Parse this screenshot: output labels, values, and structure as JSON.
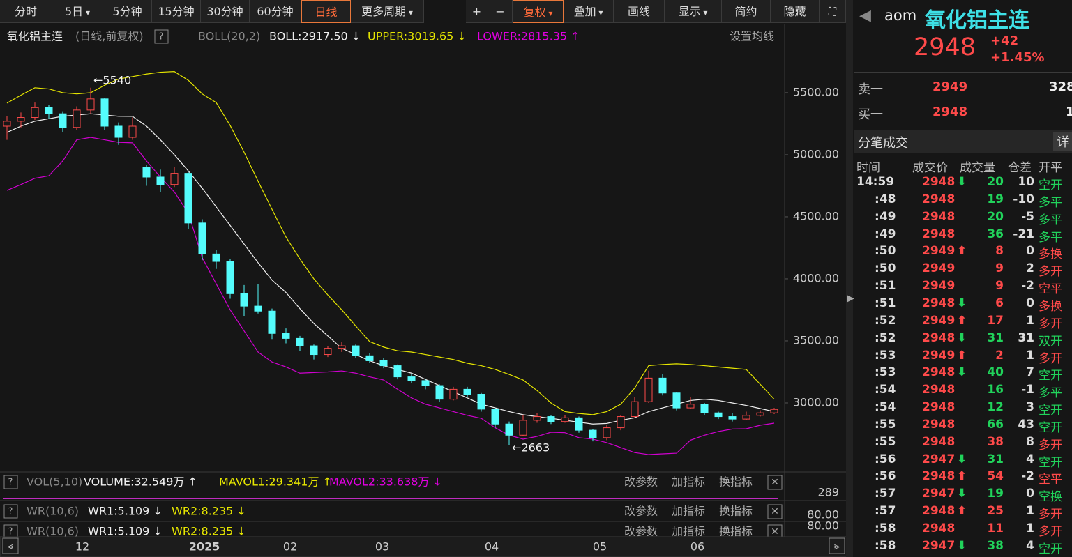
{
  "toolbar": [
    "分时",
    "5日",
    "5分钟",
    "15分钟",
    "30分钟",
    "60分钟",
    "日线",
    "更多周期",
    "+",
    "−",
    "复权",
    "叠加",
    "画线",
    "显示",
    "简约",
    "隐藏"
  ],
  "chart": {
    "title": "氧化铝主连",
    "subtitle": "(日线,前复权)",
    "indicator": "BOLL(20,2)",
    "boll": "BOLL:2917.50 ↓",
    "upper": "UPPER:3019.65 ↓",
    "lower": "LOWER:2815.35 ↑",
    "settings": "设置均线",
    "ylim": [
      2455,
      6022
    ],
    "yticks": [
      {
        "value": 5500,
        "label": "5500.00"
      },
      {
        "value": 5000,
        "label": "5000.00"
      },
      {
        "value": 4500,
        "label": "4500.00"
      },
      {
        "value": 4000,
        "label": "4000.00"
      },
      {
        "value": 3500,
        "label": "3500.00"
      },
      {
        "value": 3000,
        "label": "3000.00"
      }
    ],
    "annotations": [
      "←5540",
      "←2663"
    ],
    "x_labels": [
      "12",
      "2025",
      "02",
      "03",
      "04",
      "05",
      "06"
    ],
    "candles": [
      [
        5230,
        5310,
        5120,
        5270
      ],
      [
        5270,
        5340,
        5220,
        5300
      ],
      [
        5300,
        5420,
        5280,
        5380
      ],
      [
        5380,
        5400,
        5290,
        5330
      ],
      [
        5330,
        5350,
        5180,
        5220
      ],
      [
        5220,
        5390,
        5200,
        5360
      ],
      [
        5360,
        5540,
        5330,
        5450
      ],
      [
        5450,
        5460,
        5200,
        5230
      ],
      [
        5230,
        5260,
        5080,
        5140
      ],
      [
        5140,
        5300,
        5120,
        5230
      ],
      [
        4900,
        4920,
        4750,
        4820
      ],
      [
        4820,
        4880,
        4700,
        4760
      ],
      [
        4760,
        4900,
        4740,
        4850
      ],
      [
        4850,
        4860,
        4400,
        4450
      ],
      [
        4450,
        4480,
        4150,
        4200
      ],
      [
        4200,
        4230,
        4080,
        4140
      ],
      [
        4140,
        4160,
        3840,
        3880
      ],
      [
        3880,
        3950,
        3700,
        3780
      ],
      [
        3780,
        3960,
        3720,
        3740
      ],
      [
        3740,
        3760,
        3510,
        3560
      ],
      [
        3560,
        3600,
        3480,
        3520
      ],
      [
        3520,
        3540,
        3420,
        3460
      ],
      [
        3460,
        3470,
        3350,
        3390
      ],
      [
        3390,
        3460,
        3370,
        3440
      ],
      [
        3440,
        3490,
        3410,
        3460
      ],
      [
        3460,
        3470,
        3360,
        3380
      ],
      [
        3380,
        3400,
        3320,
        3340
      ],
      [
        3340,
        3360,
        3280,
        3300
      ],
      [
        3300,
        3310,
        3190,
        3210
      ],
      [
        3210,
        3230,
        3160,
        3180
      ],
      [
        3180,
        3190,
        3110,
        3140
      ],
      [
        3140,
        3150,
        3010,
        3030
      ],
      [
        3030,
        3130,
        3020,
        3110
      ],
      [
        3110,
        3130,
        3050,
        3070
      ],
      [
        3070,
        3080,
        2930,
        2950
      ],
      [
        2950,
        2960,
        2800,
        2830
      ],
      [
        2830,
        2850,
        2663,
        2740
      ],
      [
        2740,
        2900,
        2730,
        2860
      ],
      [
        2860,
        2920,
        2840,
        2890
      ],
      [
        2890,
        2900,
        2830,
        2850
      ],
      [
        2850,
        2900,
        2840,
        2880
      ],
      [
        2880,
        2890,
        2760,
        2780
      ],
      [
        2780,
        2790,
        2690,
        2720
      ],
      [
        2720,
        2820,
        2700,
        2800
      ],
      [
        2800,
        2900,
        2780,
        2890
      ],
      [
        2890,
        3050,
        2880,
        3010
      ],
      [
        3010,
        3260,
        3000,
        3200
      ],
      [
        3200,
        3230,
        3060,
        3080
      ],
      [
        3080,
        3090,
        2940,
        2960
      ],
      [
        2960,
        3050,
        2950,
        2990
      ],
      [
        2990,
        3000,
        2900,
        2920
      ],
      [
        2920,
        2930,
        2870,
        2890
      ],
      [
        2890,
        2920,
        2850,
        2870
      ],
      [
        2870,
        2930,
        2860,
        2900
      ],
      [
        2900,
        2940,
        2890,
        2920
      ],
      [
        2920,
        2960,
        2910,
        2948
      ]
    ],
    "upper_band": [
      5416,
      5480,
      5540,
      5530,
      5500,
      5490,
      5500,
      5560,
      5610,
      5630,
      5650,
      5665,
      5670,
      5600,
      5490,
      5420,
      5236,
      5020,
      4787,
      4560,
      4337,
      4160,
      4000,
      3870,
      3750,
      3620,
      3494,
      3450,
      3420,
      3410,
      3390,
      3370,
      3350,
      3320,
      3300,
      3270,
      3230,
      3185,
      3100,
      3000,
      2930,
      2915,
      2905,
      2930,
      2990,
      3120,
      3300,
      3310,
      3315,
      3310,
      3300,
      3290,
      3280,
      3270,
      3150,
      3030
    ],
    "mid_band": [
      5180,
      5230,
      5270,
      5290,
      5310,
      5320,
      5330,
      5320,
      5310,
      5309,
      5230,
      5120,
      5000,
      4870,
      4730,
      4580,
      4430,
      4280,
      4130,
      3990,
      3890,
      3760,
      3640,
      3540,
      3440,
      3390,
      3340,
      3300,
      3270,
      3240,
      3190,
      3140,
      3090,
      3040,
      2990,
      2960,
      2930,
      2905,
      2890,
      2876,
      2860,
      2845,
      2830,
      2835,
      2860,
      2880,
      2930,
      2960,
      2990,
      3020,
      3030,
      3020,
      3000,
      2980,
      2955,
      2930
    ],
    "lower_band": [
      4713,
      4760,
      4810,
      4830,
      4950,
      5120,
      5140,
      5120,
      5100,
      5096,
      4950,
      4820,
      4700,
      4530,
      4170,
      3960,
      3750,
      3580,
      3410,
      3330,
      3290,
      3240,
      3245,
      3250,
      3258,
      3240,
      3210,
      3185,
      3110,
      3040,
      2990,
      2960,
      2930,
      2900,
      2876,
      2800,
      2740,
      2708,
      2730,
      2764,
      2760,
      2720,
      2708,
      2680,
      2640,
      2600,
      2584,
      2590,
      2595,
      2700,
      2740,
      2770,
      2790,
      2792,
      2820,
      2837
    ]
  },
  "vol_panel": {
    "name": "VOL(5,10)",
    "volume": "VOLUME:32.549万 ↑",
    "mavol1": "MAVOL1:29.341万 ↑",
    "mavol2": "MAVOL2:33.638万 ↓",
    "axis": "289"
  },
  "wr_panel": {
    "name": "WR(10,6)",
    "wr1": "WR1:5.109 ↓",
    "wr2": "WR2:8.235 ↓",
    "axis": "80.00"
  },
  "panel_buttons": [
    "改参数",
    "加指标",
    "换指标"
  ],
  "quote": {
    "code": "aom",
    "name": "氧化铝主连",
    "price": 2948,
    "change": "+42",
    "change_pct": "+1.45%",
    "ask_label": "卖一",
    "ask": 2949,
    "ask_vol": 328,
    "bid_label": "买一",
    "bid": 2948,
    "bid_vol": 1
  },
  "ticks_panel": {
    "title": "分笔成交",
    "detail": "详",
    "headers": [
      "时间",
      "成交价",
      "成交量",
      "仓差",
      "开平"
    ],
    "rows": [
      [
        "14:59",
        2948,
        "down",
        20,
        10,
        "空开",
        "#21d35b"
      ],
      [
        ":48",
        2948,
        "",
        19,
        -10,
        "多平",
        "#21d35b"
      ],
      [
        ":49",
        2948,
        "",
        20,
        -5,
        "多平",
        "#21d35b"
      ],
      [
        ":49",
        2948,
        "",
        36,
        -21,
        "多平",
        "#21d35b"
      ],
      [
        ":50",
        2949,
        "up",
        8,
        0,
        "多换",
        "#ff4a4a"
      ],
      [
        ":50",
        2949,
        "",
        9,
        2,
        "多开",
        "#ff4a4a"
      ],
      [
        ":51",
        2949,
        "",
        9,
        -2,
        "空平",
        "#ff4a4a"
      ],
      [
        ":51",
        2948,
        "down",
        6,
        0,
        "多换",
        "#ff4a4a"
      ],
      [
        ":52",
        2949,
        "up",
        17,
        1,
        "多开",
        "#ff4a4a"
      ],
      [
        ":52",
        2948,
        "down",
        31,
        31,
        "双开",
        "#21d35b"
      ],
      [
        ":53",
        2949,
        "up",
        2,
        1,
        "多开",
        "#ff4a4a"
      ],
      [
        ":53",
        2948,
        "down",
        40,
        7,
        "空开",
        "#21d35b"
      ],
      [
        ":54",
        2948,
        "",
        16,
        -1,
        "多平",
        "#21d35b"
      ],
      [
        ":54",
        2948,
        "",
        12,
        3,
        "空开",
        "#21d35b"
      ],
      [
        ":55",
        2948,
        "",
        66,
        43,
        "空开",
        "#21d35b"
      ],
      [
        ":55",
        2948,
        "",
        38,
        8,
        "多开",
        "#ff4a4a"
      ],
      [
        ":56",
        2947,
        "down",
        31,
        4,
        "空开",
        "#21d35b"
      ],
      [
        ":56",
        2948,
        "up",
        54,
        -2,
        "空平",
        "#ff4a4a"
      ],
      [
        ":57",
        2947,
        "down",
        19,
        0,
        "空换",
        "#21d35b"
      ],
      [
        ":57",
        2948,
        "up",
        25,
        1,
        "多开",
        "#ff4a4a"
      ],
      [
        ":58",
        2948,
        "",
        11,
        1,
        "多开",
        "#ff4a4a"
      ],
      [
        ":58",
        2947,
        "down",
        38,
        4,
        "空开",
        "#21d35b"
      ]
    ]
  }
}
